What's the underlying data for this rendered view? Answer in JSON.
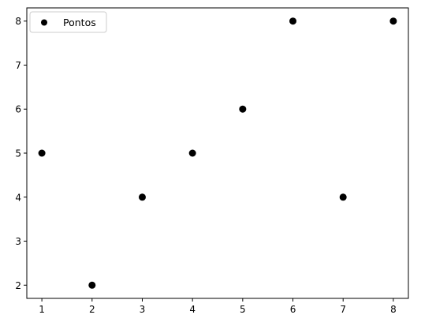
{
  "chart_data": {
    "type": "scatter",
    "title": "",
    "xlabel": "",
    "ylabel": "",
    "xlim": [
      0.7,
      8.3
    ],
    "ylim": [
      1.7,
      8.3
    ],
    "xticks": [
      1,
      2,
      3,
      4,
      5,
      6,
      7,
      8
    ],
    "yticks": [
      2,
      3,
      4,
      5,
      6,
      7,
      8
    ],
    "grid": false,
    "legend": "upper-left",
    "series": [
      {
        "name": "Pontos",
        "color": "#000000",
        "marker": "circle",
        "x": [
          1,
          2,
          3,
          4,
          5,
          6,
          7,
          8
        ],
        "y": [
          5,
          2,
          4,
          5,
          6,
          8,
          4,
          8
        ]
      }
    ]
  }
}
